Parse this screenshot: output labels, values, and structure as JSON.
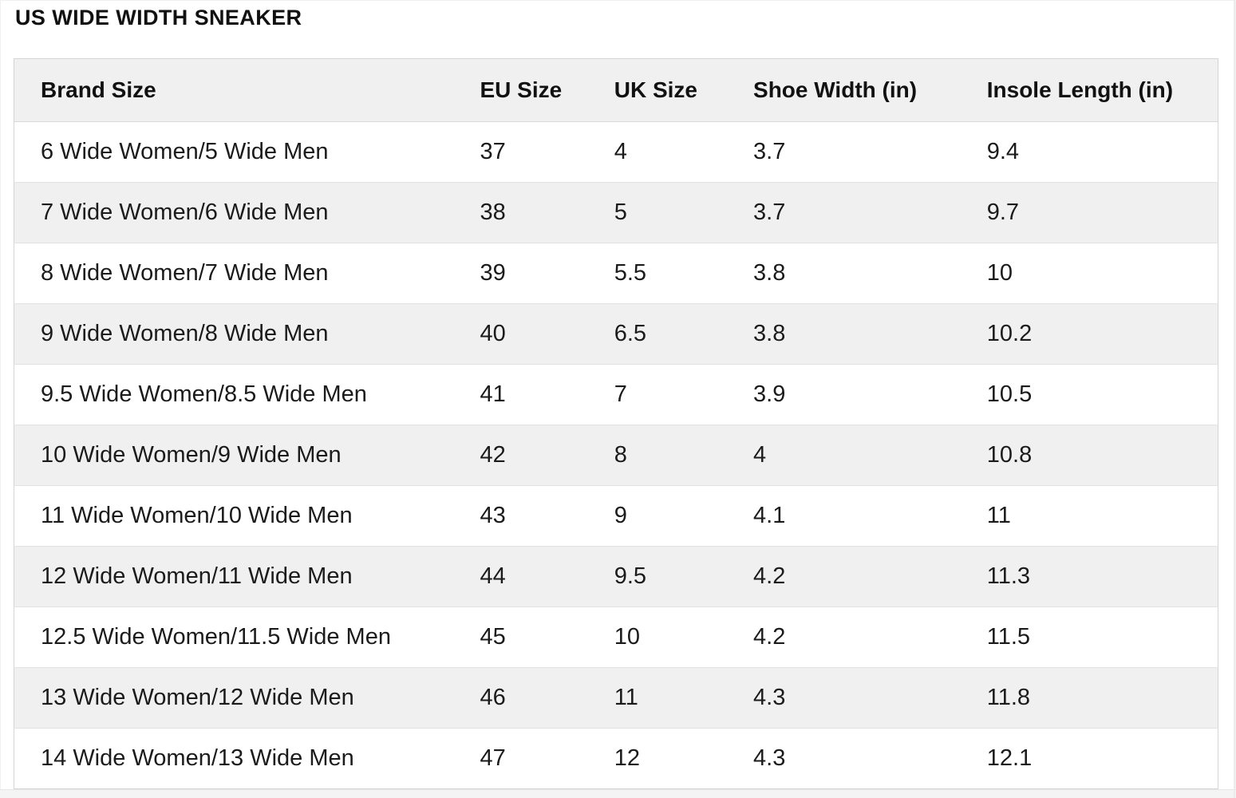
{
  "page": {
    "title": "US WIDE WIDTH SNEAKER"
  },
  "table": {
    "columns": [
      "Brand Size",
      "EU Size",
      "UK Size",
      "Shoe Width (in)",
      "Insole Length (in)"
    ],
    "rows": [
      [
        "6 Wide Women/5 Wide Men",
        "37",
        "4",
        "3.7",
        "9.4"
      ],
      [
        "7 Wide Women/6 Wide Men",
        "38",
        "5",
        "3.7",
        "9.7"
      ],
      [
        "8 Wide Women/7 Wide Men",
        "39",
        "5.5",
        "3.8",
        "10"
      ],
      [
        "9 Wide Women/8 Wide Men",
        "40",
        "6.5",
        "3.8",
        "10.2"
      ],
      [
        "9.5 Wide Women/8.5 Wide Men",
        "41",
        "7",
        "3.9",
        "10.5"
      ],
      [
        "10 Wide Women/9 Wide Men",
        "42",
        "8",
        "4",
        "10.8"
      ],
      [
        "11 Wide Women/10 Wide Men",
        "43",
        "9",
        "4.1",
        "11"
      ],
      [
        "12 Wide Women/11 Wide Men",
        "44",
        "9.5",
        "4.2",
        "11.3"
      ],
      [
        "12.5 Wide Women/11.5 Wide Men",
        "45",
        "10",
        "4.2",
        "11.5"
      ],
      [
        "13 Wide Women/12 Wide Men",
        "46",
        "11",
        "4.3",
        "11.8"
      ],
      [
        "14 Wide Women/13 Wide Men",
        "47",
        "12",
        "4.3",
        "12.1"
      ]
    ]
  },
  "colors": {
    "header_bg": "#f0f0f1",
    "stripe_bg": "#f0f0f1",
    "row_bg": "#ffffff",
    "frame_border": "#d4d4d6",
    "row_border": "#e2e2e4",
    "text": "#111111"
  }
}
